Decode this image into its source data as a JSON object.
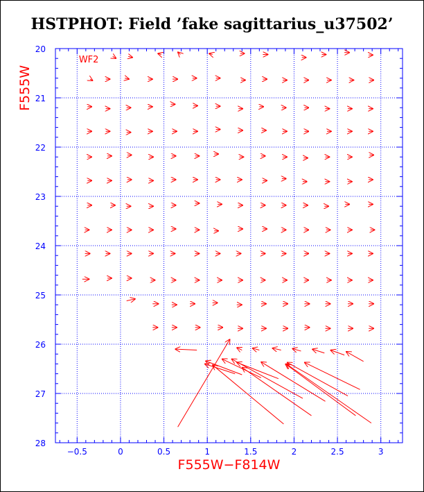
{
  "title": "HSTPHOT: Field ’fake sagittarius_u37502’",
  "colors": {
    "axis": "#0000ff",
    "grid": "#0000ff",
    "arrows": "#ff0000",
    "labels": "#ff0000",
    "title": "#000000"
  },
  "chart_data": {
    "type": "vector",
    "title": "HSTPHOT: Field ’fake sagittarius_u37502’",
    "xlabel": "F555W−F814W",
    "ylabel": "F555W",
    "panel_label": "WF2",
    "xlim": [
      -0.75,
      3.25
    ],
    "ylim": [
      28,
      20
    ],
    "y_inverted": true,
    "grid": true,
    "grid_style": "dotted",
    "x_grid_lines": [
      -0.5,
      0,
      0.5,
      1,
      1.5,
      2,
      2.5,
      3
    ],
    "y_grid_lines": [
      21,
      22,
      23,
      24,
      25,
      26,
      27
    ],
    "x_ticks": [
      {
        "value": -0.5,
        "label": "−0.5"
      },
      {
        "value": 0,
        "label": "0"
      },
      {
        "value": 0.5,
        "label": "0.5"
      },
      {
        "value": 1,
        "label": "1"
      },
      {
        "value": 1.5,
        "label": "1.5"
      },
      {
        "value": 2,
        "label": "2"
      },
      {
        "value": 2.5,
        "label": "2.5"
      },
      {
        "value": 3,
        "label": "3"
      }
    ],
    "y_ticks": [
      {
        "value": 20,
        "label": "20"
      },
      {
        "value": 21,
        "label": "21"
      },
      {
        "value": 22,
        "label": "22"
      },
      {
        "value": 23,
        "label": "23"
      },
      {
        "value": 24,
        "label": "24"
      },
      {
        "value": 25,
        "label": "25"
      },
      {
        "value": 26,
        "label": "26"
      },
      {
        "value": 27,
        "label": "27"
      },
      {
        "value": 28,
        "label": "28"
      }
    ],
    "arrows": [
      {
        "x": -0.09,
        "y": 20.16,
        "dx": 0.04,
        "dy": 0.04
      },
      {
        "x": 0.09,
        "y": 20.16,
        "dx": 0.05,
        "dy": 0.02
      },
      {
        "x": 0.47,
        "y": 20.12,
        "dx": -0.04,
        "dy": -0.02
      },
      {
        "x": 0.69,
        "y": 20.12,
        "dx": -0.03,
        "dy": -0.05
      },
      {
        "x": 1.06,
        "y": 20.12,
        "dx": -0.04,
        "dy": -0.02
      },
      {
        "x": 1.38,
        "y": 20.1,
        "dx": 0.05,
        "dy": 0.0
      },
      {
        "x": 1.64,
        "y": 20.12,
        "dx": 0.06,
        "dy": 0.0
      },
      {
        "x": 2.09,
        "y": 20.18,
        "dx": 0.05,
        "dy": 0.0
      },
      {
        "x": 2.32,
        "y": 20.12,
        "dx": 0.05,
        "dy": 0.0
      },
      {
        "x": 2.58,
        "y": 20.08,
        "dx": 0.06,
        "dy": 0.0
      },
      {
        "x": 2.86,
        "y": 20.13,
        "dx": 0.05,
        "dy": 0.0
      },
      {
        "x": -0.35,
        "y": 20.62,
        "dx": 0.03,
        "dy": 0.03
      },
      {
        "x": -0.17,
        "y": 20.62,
        "dx": 0.05,
        "dy": 0.0
      },
      {
        "x": 0.05,
        "y": 20.6,
        "dx": 0.05,
        "dy": 0.02
      },
      {
        "x": 0.32,
        "y": 20.62,
        "dx": 0.05,
        "dy": 0.0
      },
      {
        "x": 0.6,
        "y": 20.62,
        "dx": 0.06,
        "dy": 0.0
      },
      {
        "x": 0.83,
        "y": 20.6,
        "dx": 0.05,
        "dy": 0.0
      },
      {
        "x": 1.1,
        "y": 20.6,
        "dx": 0.05,
        "dy": 0.0
      },
      {
        "x": 1.39,
        "y": 20.64,
        "dx": 0.05,
        "dy": 0.0
      },
      {
        "x": 1.64,
        "y": 20.62,
        "dx": 0.05,
        "dy": 0.0
      },
      {
        "x": 1.87,
        "y": 20.64,
        "dx": 0.05,
        "dy": 0.0
      },
      {
        "x": 2.12,
        "y": 20.64,
        "dx": 0.05,
        "dy": 0.0
      },
      {
        "x": 2.38,
        "y": 20.64,
        "dx": 0.05,
        "dy": 0.0
      },
      {
        "x": 2.64,
        "y": 20.64,
        "dx": 0.05,
        "dy": 0.0
      },
      {
        "x": 2.87,
        "y": 20.64,
        "dx": 0.05,
        "dy": 0.0
      },
      {
        "x": -0.38,
        "y": 21.18,
        "dx": 0.05,
        "dy": 0.0
      },
      {
        "x": -0.17,
        "y": 21.22,
        "dx": 0.05,
        "dy": 0.0
      },
      {
        "x": 0.07,
        "y": 21.2,
        "dx": 0.05,
        "dy": 0.0
      },
      {
        "x": 0.32,
        "y": 21.18,
        "dx": 0.05,
        "dy": 0.0
      },
      {
        "x": 0.58,
        "y": 21.13,
        "dx": 0.05,
        "dy": 0.0
      },
      {
        "x": 0.84,
        "y": 21.16,
        "dx": 0.05,
        "dy": 0.0
      },
      {
        "x": 1.1,
        "y": 21.17,
        "dx": 0.05,
        "dy": 0.0
      },
      {
        "x": 1.36,
        "y": 21.22,
        "dx": 0.05,
        "dy": 0.0
      },
      {
        "x": 1.6,
        "y": 21.18,
        "dx": 0.05,
        "dy": 0.0
      },
      {
        "x": 1.86,
        "y": 21.2,
        "dx": 0.05,
        "dy": 0.0
      },
      {
        "x": 2.12,
        "y": 21.2,
        "dx": 0.05,
        "dy": 0.0
      },
      {
        "x": 2.36,
        "y": 21.22,
        "dx": 0.05,
        "dy": 0.0
      },
      {
        "x": 2.62,
        "y": 21.22,
        "dx": 0.05,
        "dy": 0.0
      },
      {
        "x": 2.86,
        "y": 21.22,
        "dx": 0.05,
        "dy": 0.0
      },
      {
        "x": -0.38,
        "y": 21.68,
        "dx": 0.05,
        "dy": 0.0
      },
      {
        "x": -0.17,
        "y": 21.68,
        "dx": 0.05,
        "dy": 0.0
      },
      {
        "x": 0.07,
        "y": 21.7,
        "dx": 0.05,
        "dy": 0.0
      },
      {
        "x": 0.32,
        "y": 21.68,
        "dx": 0.05,
        "dy": 0.0
      },
      {
        "x": 0.6,
        "y": 21.68,
        "dx": 0.05,
        "dy": 0.0
      },
      {
        "x": 0.84,
        "y": 21.68,
        "dx": 0.05,
        "dy": 0.0
      },
      {
        "x": 1.1,
        "y": 21.64,
        "dx": 0.05,
        "dy": 0.0
      },
      {
        "x": 1.36,
        "y": 21.66,
        "dx": 0.05,
        "dy": 0.0
      },
      {
        "x": 1.63,
        "y": 21.66,
        "dx": 0.05,
        "dy": 0.0
      },
      {
        "x": 1.87,
        "y": 21.68,
        "dx": 0.05,
        "dy": 0.0
      },
      {
        "x": 2.12,
        "y": 21.68,
        "dx": 0.05,
        "dy": 0.0
      },
      {
        "x": 2.38,
        "y": 21.68,
        "dx": 0.05,
        "dy": 0.0
      },
      {
        "x": 2.62,
        "y": 21.68,
        "dx": 0.05,
        "dy": 0.0
      },
      {
        "x": 2.86,
        "y": 21.68,
        "dx": 0.05,
        "dy": 0.0
      },
      {
        "x": -0.38,
        "y": 22.2,
        "dx": 0.05,
        "dy": 0.0
      },
      {
        "x": -0.15,
        "y": 22.18,
        "dx": 0.05,
        "dy": 0.0
      },
      {
        "x": 0.08,
        "y": 22.16,
        "dx": 0.05,
        "dy": 0.0
      },
      {
        "x": 0.33,
        "y": 22.2,
        "dx": 0.05,
        "dy": 0.0
      },
      {
        "x": 0.59,
        "y": 22.18,
        "dx": 0.05,
        "dy": 0.0
      },
      {
        "x": 0.86,
        "y": 22.18,
        "dx": 0.05,
        "dy": 0.0
      },
      {
        "x": 1.08,
        "y": 22.14,
        "dx": 0.05,
        "dy": 0.0
      },
      {
        "x": 1.37,
        "y": 22.2,
        "dx": 0.05,
        "dy": 0.0
      },
      {
        "x": 1.62,
        "y": 22.18,
        "dx": 0.05,
        "dy": 0.0
      },
      {
        "x": 1.87,
        "y": 22.2,
        "dx": 0.05,
        "dy": 0.0
      },
      {
        "x": 2.11,
        "y": 22.22,
        "dx": 0.05,
        "dy": 0.0
      },
      {
        "x": 2.36,
        "y": 22.2,
        "dx": 0.05,
        "dy": 0.0
      },
      {
        "x": 2.62,
        "y": 22.2,
        "dx": 0.05,
        "dy": 0.0
      },
      {
        "x": 2.87,
        "y": 22.16,
        "dx": 0.05,
        "dy": 0.0
      },
      {
        "x": -0.38,
        "y": 22.68,
        "dx": 0.05,
        "dy": 0.0
      },
      {
        "x": -0.15,
        "y": 22.68,
        "dx": 0.05,
        "dy": 0.0
      },
      {
        "x": 0.08,
        "y": 22.66,
        "dx": 0.05,
        "dy": 0.0
      },
      {
        "x": 0.33,
        "y": 22.68,
        "dx": 0.05,
        "dy": 0.0
      },
      {
        "x": 0.59,
        "y": 22.66,
        "dx": 0.05,
        "dy": 0.0
      },
      {
        "x": 0.84,
        "y": 22.66,
        "dx": 0.05,
        "dy": 0.0
      },
      {
        "x": 1.1,
        "y": 22.66,
        "dx": 0.05,
        "dy": 0.0
      },
      {
        "x": 1.35,
        "y": 22.66,
        "dx": 0.05,
        "dy": 0.0
      },
      {
        "x": 1.64,
        "y": 22.68,
        "dx": 0.05,
        "dy": 0.0
      },
      {
        "x": 1.86,
        "y": 22.64,
        "dx": 0.05,
        "dy": 0.0
      },
      {
        "x": 2.1,
        "y": 22.7,
        "dx": 0.05,
        "dy": 0.0
      },
      {
        "x": 2.36,
        "y": 22.7,
        "dx": 0.05,
        "dy": 0.0
      },
      {
        "x": 2.62,
        "y": 22.7,
        "dx": 0.05,
        "dy": 0.0
      },
      {
        "x": 2.86,
        "y": 22.66,
        "dx": 0.05,
        "dy": 0.0
      },
      {
        "x": -0.38,
        "y": 23.18,
        "dx": 0.05,
        "dy": 0.0
      },
      {
        "x": -0.11,
        "y": 23.18,
        "dx": 0.05,
        "dy": 0.0
      },
      {
        "x": 0.07,
        "y": 23.2,
        "dx": 0.05,
        "dy": 0.0
      },
      {
        "x": 0.33,
        "y": 23.2,
        "dx": 0.05,
        "dy": 0.0
      },
      {
        "x": 0.59,
        "y": 23.18,
        "dx": 0.05,
        "dy": 0.0
      },
      {
        "x": 0.86,
        "y": 23.14,
        "dx": 0.05,
        "dy": 0.0
      },
      {
        "x": 1.12,
        "y": 23.16,
        "dx": 0.05,
        "dy": 0.0
      },
      {
        "x": 1.36,
        "y": 23.18,
        "dx": 0.05,
        "dy": 0.0
      },
      {
        "x": 1.62,
        "y": 23.18,
        "dx": 0.05,
        "dy": 0.0
      },
      {
        "x": 1.86,
        "y": 23.18,
        "dx": 0.05,
        "dy": 0.0
      },
      {
        "x": 2.11,
        "y": 23.18,
        "dx": 0.05,
        "dy": 0.0
      },
      {
        "x": 2.35,
        "y": 23.2,
        "dx": 0.05,
        "dy": 0.0
      },
      {
        "x": 2.59,
        "y": 23.16,
        "dx": 0.05,
        "dy": 0.0
      },
      {
        "x": 2.86,
        "y": 23.16,
        "dx": 0.05,
        "dy": 0.0
      },
      {
        "x": -0.41,
        "y": 23.68,
        "dx": 0.05,
        "dy": 0.0
      },
      {
        "x": -0.15,
        "y": 23.68,
        "dx": 0.05,
        "dy": 0.0
      },
      {
        "x": 0.08,
        "y": 23.68,
        "dx": 0.05,
        "dy": 0.0
      },
      {
        "x": 0.33,
        "y": 23.68,
        "dx": 0.05,
        "dy": 0.0
      },
      {
        "x": 0.59,
        "y": 23.66,
        "dx": 0.05,
        "dy": 0.0
      },
      {
        "x": 0.86,
        "y": 23.68,
        "dx": 0.05,
        "dy": 0.0
      },
      {
        "x": 1.08,
        "y": 23.7,
        "dx": 0.05,
        "dy": 0.0
      },
      {
        "x": 1.36,
        "y": 23.66,
        "dx": 0.05,
        "dy": 0.0
      },
      {
        "x": 1.64,
        "y": 23.66,
        "dx": 0.05,
        "dy": 0.0
      },
      {
        "x": 1.86,
        "y": 23.68,
        "dx": 0.05,
        "dy": 0.0
      },
      {
        "x": 2.12,
        "y": 23.68,
        "dx": 0.05,
        "dy": 0.0
      },
      {
        "x": 2.37,
        "y": 23.68,
        "dx": 0.05,
        "dy": 0.0
      },
      {
        "x": 2.62,
        "y": 23.68,
        "dx": 0.05,
        "dy": 0.0
      },
      {
        "x": 2.88,
        "y": 23.68,
        "dx": 0.05,
        "dy": 0.0
      },
      {
        "x": -0.41,
        "y": 24.16,
        "dx": 0.06,
        "dy": 0.0
      },
      {
        "x": -0.17,
        "y": 24.16,
        "dx": 0.05,
        "dy": 0.0
      },
      {
        "x": 0.08,
        "y": 24.16,
        "dx": 0.05,
        "dy": 0.0
      },
      {
        "x": 0.33,
        "y": 24.16,
        "dx": 0.05,
        "dy": 0.0
      },
      {
        "x": 0.58,
        "y": 24.16,
        "dx": 0.05,
        "dy": 0.0
      },
      {
        "x": 0.86,
        "y": 24.16,
        "dx": 0.05,
        "dy": 0.0
      },
      {
        "x": 1.1,
        "y": 24.16,
        "dx": 0.05,
        "dy": 0.0
      },
      {
        "x": 1.34,
        "y": 24.16,
        "dx": 0.05,
        "dy": 0.0
      },
      {
        "x": 1.62,
        "y": 24.16,
        "dx": 0.05,
        "dy": 0.0
      },
      {
        "x": 1.86,
        "y": 24.16,
        "dx": 0.05,
        "dy": 0.0
      },
      {
        "x": 2.12,
        "y": 24.16,
        "dx": 0.05,
        "dy": 0.0
      },
      {
        "x": 2.36,
        "y": 24.16,
        "dx": 0.05,
        "dy": 0.0
      },
      {
        "x": 2.62,
        "y": 24.16,
        "dx": 0.05,
        "dy": 0.0
      },
      {
        "x": 2.86,
        "y": 24.16,
        "dx": 0.05,
        "dy": 0.0
      },
      {
        "x": -0.44,
        "y": 24.68,
        "dx": 0.08,
        "dy": 0.0
      },
      {
        "x": -0.15,
        "y": 24.66,
        "dx": 0.05,
        "dy": 0.0
      },
      {
        "x": 0.08,
        "y": 24.66,
        "dx": 0.05,
        "dy": 0.0
      },
      {
        "x": 0.35,
        "y": 24.7,
        "dx": 0.05,
        "dy": 0.0
      },
      {
        "x": 0.59,
        "y": 24.7,
        "dx": 0.05,
        "dy": 0.0
      },
      {
        "x": 0.86,
        "y": 24.7,
        "dx": 0.05,
        "dy": 0.0
      },
      {
        "x": 1.12,
        "y": 24.7,
        "dx": 0.05,
        "dy": 0.0
      },
      {
        "x": 1.36,
        "y": 24.7,
        "dx": 0.05,
        "dy": 0.0
      },
      {
        "x": 1.62,
        "y": 24.7,
        "dx": 0.05,
        "dy": 0.0
      },
      {
        "x": 1.87,
        "y": 24.7,
        "dx": 0.05,
        "dy": 0.0
      },
      {
        "x": 2.12,
        "y": 24.7,
        "dx": 0.05,
        "dy": 0.0
      },
      {
        "x": 2.38,
        "y": 24.7,
        "dx": 0.05,
        "dy": 0.0
      },
      {
        "x": 2.62,
        "y": 24.7,
        "dx": 0.05,
        "dy": 0.0
      },
      {
        "x": 2.86,
        "y": 24.7,
        "dx": 0.05,
        "dy": 0.0
      },
      {
        "x": 0.07,
        "y": 25.12,
        "dx": 0.1,
        "dy": -0.04
      },
      {
        "x": 0.37,
        "y": 25.18,
        "dx": 0.07,
        "dy": 0.0
      },
      {
        "x": 0.59,
        "y": 25.2,
        "dx": 0.06,
        "dy": 0.0
      },
      {
        "x": 0.8,
        "y": 25.18,
        "dx": 0.06,
        "dy": 0.0
      },
      {
        "x": 1.06,
        "y": 25.16,
        "dx": 0.06,
        "dy": 0.0
      },
      {
        "x": 1.34,
        "y": 25.2,
        "dx": 0.06,
        "dy": 0.0
      },
      {
        "x": 1.62,
        "y": 25.18,
        "dx": 0.06,
        "dy": 0.0
      },
      {
        "x": 1.87,
        "y": 25.18,
        "dx": 0.06,
        "dy": 0.0
      },
      {
        "x": 2.12,
        "y": 25.18,
        "dx": 0.06,
        "dy": 0.0
      },
      {
        "x": 2.36,
        "y": 25.18,
        "dx": 0.06,
        "dy": 0.0
      },
      {
        "x": 2.62,
        "y": 25.18,
        "dx": 0.06,
        "dy": 0.0
      },
      {
        "x": 2.86,
        "y": 25.18,
        "dx": 0.06,
        "dy": 0.0
      },
      {
        "x": 0.37,
        "y": 25.66,
        "dx": 0.06,
        "dy": 0.0
      },
      {
        "x": 0.59,
        "y": 25.66,
        "dx": 0.06,
        "dy": 0.0
      },
      {
        "x": 0.86,
        "y": 25.66,
        "dx": 0.06,
        "dy": 0.0
      },
      {
        "x": 1.12,
        "y": 25.66,
        "dx": 0.06,
        "dy": 0.0
      },
      {
        "x": 1.35,
        "y": 25.68,
        "dx": 0.06,
        "dy": 0.0
      },
      {
        "x": 1.62,
        "y": 25.68,
        "dx": 0.06,
        "dy": 0.0
      },
      {
        "x": 1.87,
        "y": 25.68,
        "dx": 0.06,
        "dy": 0.0
      },
      {
        "x": 2.12,
        "y": 25.66,
        "dx": 0.06,
        "dy": 0.0
      },
      {
        "x": 2.36,
        "y": 25.68,
        "dx": 0.06,
        "dy": 0.0
      },
      {
        "x": 2.62,
        "y": 25.68,
        "dx": 0.06,
        "dy": 0.0
      },
      {
        "x": 2.86,
        "y": 25.68,
        "dx": 0.06,
        "dy": 0.0
      },
      {
        "x": 0.88,
        "y": 26.12,
        "dx": -0.25,
        "dy": -0.02
      },
      {
        "x": 0.66,
        "y": 27.68,
        "dx": 0.6,
        "dy": -1.78
      },
      {
        "x": 1.4,
        "y": 26.12,
        "dx": -0.06,
        "dy": -0.05
      },
      {
        "x": 1.6,
        "y": 26.12,
        "dx": -0.08,
        "dy": -0.04
      },
      {
        "x": 1.85,
        "y": 26.12,
        "dx": -0.1,
        "dy": -0.04
      },
      {
        "x": 2.08,
        "y": 26.14,
        "dx": -0.1,
        "dy": -0.05
      },
      {
        "x": 2.35,
        "y": 26.18,
        "dx": -0.14,
        "dy": -0.08
      },
      {
        "x": 2.58,
        "y": 26.22,
        "dx": -0.16,
        "dy": -0.1
      },
      {
        "x": 2.8,
        "y": 26.35,
        "dx": -0.2,
        "dy": -0.2
      },
      {
        "x": 1.32,
        "y": 26.6,
        "dx": -0.35,
        "dy": -0.2
      },
      {
        "x": 1.4,
        "y": 26.62,
        "dx": -0.42,
        "dy": -0.28
      },
      {
        "x": 1.62,
        "y": 26.68,
        "dx": -0.45,
        "dy": -0.38
      },
      {
        "x": 1.82,
        "y": 26.7,
        "dx": -0.48,
        "dy": -0.33
      },
      {
        "x": 1.88,
        "y": 27.62,
        "dx": -0.82,
        "dy": -1.2
      },
      {
        "x": 2.1,
        "y": 27.1,
        "dx": -0.82,
        "dy": -0.8
      },
      {
        "x": 2.2,
        "y": 27.45,
        "dx": -0.8,
        "dy": -0.98
      },
      {
        "x": 2.36,
        "y": 27.16,
        "dx": -0.74,
        "dy": -0.8
      },
      {
        "x": 2.62,
        "y": 27.05,
        "dx": -0.7,
        "dy": -0.68
      },
      {
        "x": 2.71,
        "y": 27.45,
        "dx": -0.81,
        "dy": -1.05
      },
      {
        "x": 2.89,
        "y": 27.6,
        "dx": -0.98,
        "dy": -1.2
      },
      {
        "x": 2.76,
        "y": 26.92,
        "dx": -0.64,
        "dy": -0.55
      }
    ]
  }
}
